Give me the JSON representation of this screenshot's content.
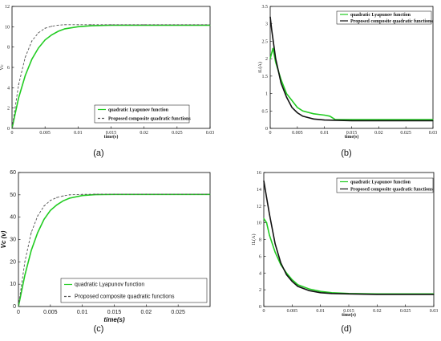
{
  "chart_data": [
    {
      "type": "line",
      "caption": "(a)",
      "ylabel": "Vc",
      "xlabel": "time(s)",
      "xlim": [
        0,
        0.03
      ],
      "ylim": [
        0,
        12
      ],
      "xticks": [
        0,
        0.005,
        0.01,
        0.015,
        0.02,
        0.025,
        0.03
      ],
      "xtick_labels": [
        "0",
        "0.005",
        "0.01",
        "0.015",
        "0.02",
        "0.025",
        "0.03"
      ],
      "yticks": [
        0,
        2,
        4,
        6,
        8,
        10,
        12
      ],
      "ytick_labels": [
        "0",
        "2",
        "4",
        "6",
        "8",
        "10",
        "12"
      ],
      "legend_position": "bottom-right",
      "series": [
        {
          "name": "quadratic Lyapunov function",
          "color": "#22cc22",
          "style": "solid",
          "x": [
            0,
            0.001,
            0.002,
            0.003,
            0.004,
            0.005,
            0.006,
            0.007,
            0.008,
            0.01,
            0.012,
            0.015,
            0.02,
            0.03
          ],
          "y": [
            0,
            3.0,
            5.2,
            6.8,
            7.9,
            8.7,
            9.2,
            9.55,
            9.8,
            10.0,
            10.1,
            10.15,
            10.15,
            10.15
          ]
        },
        {
          "name": "Proposed composite quadratic functions",
          "color": "#555555",
          "style": "dashed",
          "x": [
            0,
            0.001,
            0.002,
            0.003,
            0.004,
            0.005,
            0.006,
            0.007,
            0.008,
            0.01,
            0.012,
            0.015,
            0.02,
            0.03
          ],
          "y": [
            0,
            4.3,
            7.0,
            8.6,
            9.4,
            9.85,
            10.05,
            10.15,
            10.2,
            10.2,
            10.2,
            10.2,
            10.2,
            10.2
          ]
        }
      ]
    },
    {
      "type": "line",
      "caption": "(b)",
      "ylabel": "iL(A)",
      "xlabel": "time(s)",
      "xlim": [
        0,
        0.03
      ],
      "ylim": [
        0,
        3.5
      ],
      "xticks": [
        0,
        0.005,
        0.01,
        0.015,
        0.02,
        0.025,
        0.03
      ],
      "xtick_labels": [
        "0",
        "0.005",
        "0.01",
        "0.015",
        "0.02",
        "0.025",
        "0.03"
      ],
      "yticks": [
        0,
        0.5,
        1,
        1.5,
        2,
        2.5,
        3,
        3.5
      ],
      "ytick_labels": [
        "0",
        "0.5",
        "1",
        "1.5",
        "2",
        "2.5",
        "3",
        "3.5"
      ],
      "legend_position": "top-right",
      "series": [
        {
          "name": "quadratic Lyapunov function",
          "color": "#22cc22",
          "style": "solid",
          "x": [
            0,
            0.0005,
            0.001,
            0.002,
            0.003,
            0.004,
            0.005,
            0.006,
            0.008,
            0.01,
            0.011,
            0.012,
            0.015,
            0.02,
            0.03
          ],
          "y": [
            2.0,
            2.3,
            1.9,
            1.4,
            1.0,
            0.8,
            0.6,
            0.5,
            0.42,
            0.38,
            0.35,
            0.25,
            0.25,
            0.25,
            0.25
          ]
        },
        {
          "name": "Proposed composite quadratic functions",
          "color": "#111111",
          "style": "solid",
          "x": [
            0,
            0.0003,
            0.001,
            0.002,
            0.003,
            0.004,
            0.005,
            0.006,
            0.008,
            0.01,
            0.015,
            0.02,
            0.03
          ],
          "y": [
            3.2,
            2.8,
            2.0,
            1.3,
            0.9,
            0.6,
            0.45,
            0.35,
            0.27,
            0.24,
            0.22,
            0.22,
            0.22
          ]
        }
      ]
    },
    {
      "type": "line",
      "caption": "(c)",
      "ylabel": "Vc (v)",
      "xlabel": "time(s)",
      "xlim": [
        0,
        0.03
      ],
      "ylim": [
        0,
        60
      ],
      "xticks": [
        0,
        0.005,
        0.01,
        0.015,
        0.02,
        0.025
      ],
      "xtick_labels": [
        "0",
        "0.005",
        "0.01",
        "0.015",
        "0.02",
        "0.025"
      ],
      "yticks": [
        0,
        10,
        20,
        30,
        40,
        50,
        60
      ],
      "ytick_labels": [
        "0",
        "10",
        "20",
        "30",
        "40",
        "50",
        "60"
      ],
      "legend_position": "bottom-right",
      "series": [
        {
          "name": "quadratic Lyapunov function",
          "color": "#22cc22",
          "style": "solid",
          "x": [
            0,
            0.001,
            0.002,
            0.003,
            0.004,
            0.005,
            0.006,
            0.007,
            0.008,
            0.01,
            0.012,
            0.015,
            0.02,
            0.03
          ],
          "y": [
            0,
            14,
            25,
            33,
            39,
            43,
            45.5,
            47.3,
            48.5,
            49.7,
            50.1,
            50.2,
            50.2,
            50.2
          ]
        },
        {
          "name": "Proposed composite quadratic functions",
          "color": "#555555",
          "style": "dashed",
          "x": [
            0,
            0.001,
            0.002,
            0.003,
            0.004,
            0.005,
            0.006,
            0.007,
            0.008,
            0.01,
            0.012,
            0.015,
            0.02,
            0.03
          ],
          "y": [
            0,
            20,
            33,
            40.5,
            45,
            47.5,
            48.8,
            49.5,
            50.0,
            50.2,
            50.3,
            50.3,
            50.3,
            50.3
          ]
        }
      ]
    },
    {
      "type": "line",
      "caption": "(d)",
      "ylabel": "IL(A)",
      "xlabel": "time(s)",
      "xlim": [
        0,
        0.03
      ],
      "ylim": [
        0,
        16
      ],
      "xticks": [
        0,
        0.005,
        0.01,
        0.015,
        0.02,
        0.025,
        0.03
      ],
      "xtick_labels": [
        "0",
        "0.005",
        "0.01",
        "0.015",
        "0.02",
        "0.025",
        "0.03"
      ],
      "yticks": [
        0,
        2,
        4,
        6,
        8,
        10,
        12,
        14,
        16
      ],
      "ytick_labels": [
        "0",
        "2",
        "4",
        "6",
        "8",
        "10",
        "12",
        "14",
        "16"
      ],
      "legend_position": "top-right",
      "series": [
        {
          "name": "quadratic Lyapunov function",
          "color": "#22cc22",
          "style": "solid",
          "x": [
            0,
            0.0005,
            0.001,
            0.002,
            0.003,
            0.004,
            0.005,
            0.006,
            0.008,
            0.01,
            0.012,
            0.015,
            0.02,
            0.03
          ],
          "y": [
            10.5,
            10.0,
            8.5,
            6.5,
            5.0,
            4.0,
            3.2,
            2.6,
            2.1,
            1.8,
            1.65,
            1.55,
            1.5,
            1.5
          ]
        },
        {
          "name": "Proposed composite quadratic functions",
          "color": "#111111",
          "style": "solid",
          "x": [
            0,
            0.0005,
            0.001,
            0.002,
            0.003,
            0.004,
            0.005,
            0.006,
            0.008,
            0.01,
            0.012,
            0.015,
            0.02,
            0.03
          ],
          "y": [
            15,
            13,
            11,
            7.5,
            5.2,
            3.8,
            3.0,
            2.4,
            1.9,
            1.65,
            1.55,
            1.5,
            1.45,
            1.45
          ]
        }
      ]
    }
  ]
}
